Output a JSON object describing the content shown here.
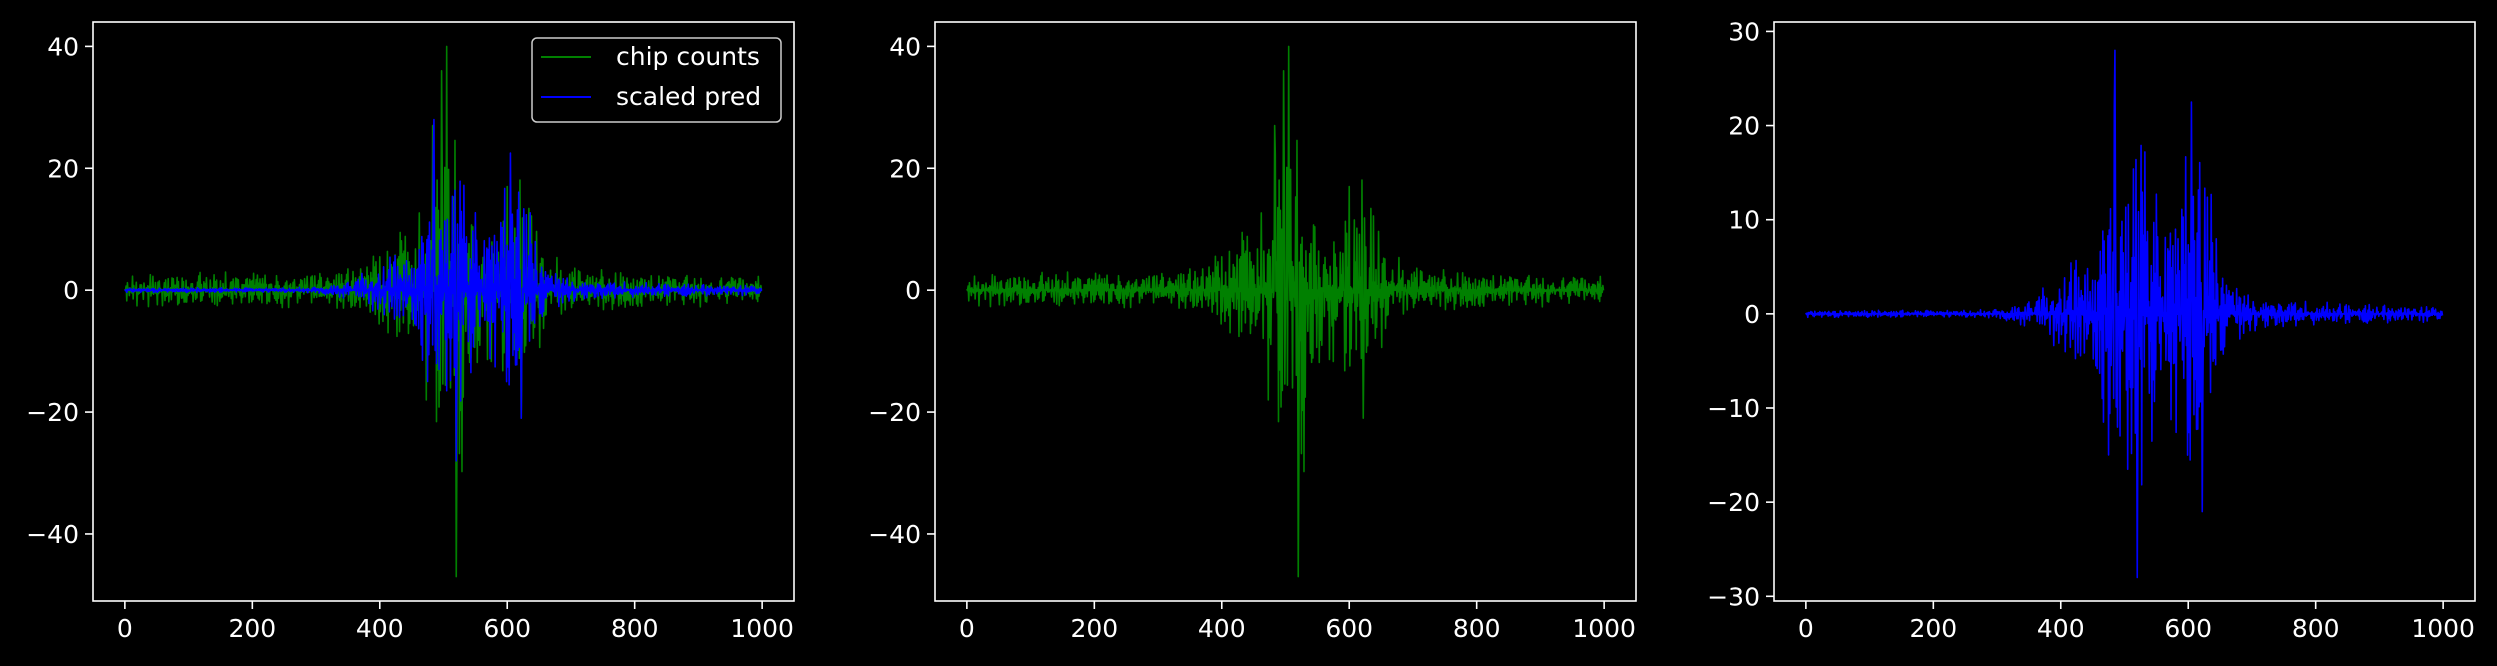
{
  "figure": {
    "background": "#000000",
    "foreground": "#ffffff"
  },
  "chart_data": [
    {
      "type": "line",
      "title": "",
      "xlabel": "",
      "ylabel": "",
      "xlim": [
        -50,
        1050
      ],
      "ylim": [
        -51,
        44
      ],
      "xticks": [
        0,
        200,
        400,
        600,
        800,
        1000
      ],
      "yticks": [
        -40,
        -20,
        0,
        20,
        40
      ],
      "grid": false,
      "legend": {
        "position": "top-right"
      },
      "series": [
        {
          "name": "chip counts",
          "color": "#008000",
          "signal": "chip_counts",
          "scale": 1.0
        },
        {
          "name": "scaled pred",
          "color": "#0000ff",
          "signal": "pred",
          "scale": 1.0
        }
      ]
    },
    {
      "type": "line",
      "title": "",
      "xlabel": "",
      "ylabel": "",
      "xlim": [
        -50,
        1050
      ],
      "ylim": [
        -51,
        44
      ],
      "xticks": [
        0,
        200,
        400,
        600,
        800,
        1000
      ],
      "yticks": [
        -40,
        -20,
        0,
        20,
        40
      ],
      "grid": false,
      "series": [
        {
          "color": "#008000",
          "signal": "chip_counts",
          "scale": 1.0
        }
      ]
    },
    {
      "type": "line",
      "title": "",
      "xlabel": "",
      "ylabel": "",
      "xlim": [
        -50,
        1050
      ],
      "ylim": [
        -30.5,
        31
      ],
      "xticks": [
        0,
        200,
        400,
        600,
        800,
        1000
      ],
      "yticks": [
        -30,
        -20,
        -10,
        0,
        10,
        20,
        30
      ],
      "grid": false,
      "series": [
        {
          "color": "#0000ff",
          "signal": "pred",
          "scale": 1.0
        }
      ]
    }
  ],
  "signals": {
    "chip_counts": {
      "length": 1000,
      "pattern": "symmetric oscillating noise about 0, sharp central burst",
      "envelope_points": [
        [
          0,
          3
        ],
        [
          150,
          3.5
        ],
        [
          300,
          3
        ],
        [
          380,
          6
        ],
        [
          450,
          12
        ],
        [
          480,
          22
        ],
        [
          505,
          40
        ],
        [
          520,
          47
        ],
        [
          540,
          20
        ],
        [
          580,
          12
        ],
        [
          610,
          17
        ],
        [
          625,
          21
        ],
        [
          660,
          8
        ],
        [
          720,
          4
        ],
        [
          850,
          3
        ],
        [
          1000,
          2.5
        ]
      ],
      "spikes": [
        [
          505,
          40
        ],
        [
          520,
          -47
        ],
        [
          497,
          36
        ],
        [
          483,
          27
        ],
        [
          600,
          17
        ],
        [
          622,
          -21
        ]
      ]
    },
    "pred": {
      "length": 1000,
      "pattern": "symmetric envelope about 0, low near ends, large central burst",
      "envelope_points": [
        [
          0,
          0.4
        ],
        [
          300,
          0.5
        ],
        [
          350,
          1.5
        ],
        [
          400,
          5
        ],
        [
          450,
          8
        ],
        [
          480,
          22
        ],
        [
          485,
          28
        ],
        [
          500,
          12
        ],
        [
          520,
          27
        ],
        [
          560,
          10
        ],
        [
          600,
          20
        ],
        [
          605,
          22.5
        ],
        [
          625,
          20
        ],
        [
          660,
          5
        ],
        [
          700,
          2
        ],
        [
          800,
          1.5
        ],
        [
          1000,
          0.8
        ]
      ],
      "spikes": [
        [
          485,
          28
        ],
        [
          520,
          -28
        ],
        [
          605,
          22.5
        ],
        [
          622,
          -21
        ],
        [
          505,
          -16.5
        ]
      ]
    }
  }
}
